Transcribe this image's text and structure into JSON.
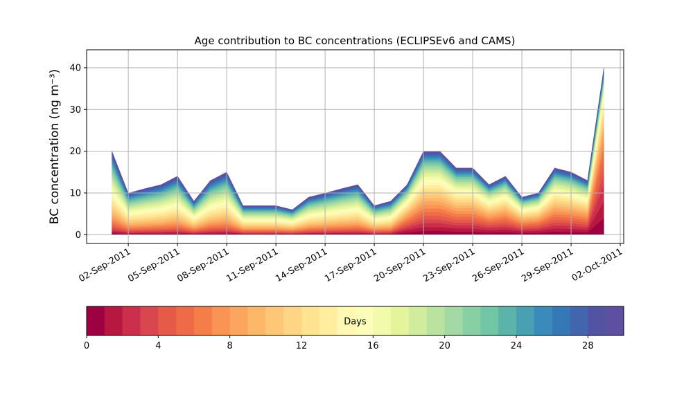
{
  "chart_data": {
    "type": "stacked_area",
    "title": "Age contribution to BC concentrations (ECLIPSEv6 and CAMS)",
    "ylabel": "BC concentration (ng m⁻³)",
    "x": [
      "2011-09-01",
      "2011-09-02",
      "2011-09-03",
      "2011-09-04",
      "2011-09-05",
      "2011-09-06",
      "2011-09-07",
      "2011-09-08",
      "2011-09-09",
      "2011-09-10",
      "2011-09-11",
      "2011-09-12",
      "2011-09-13",
      "2011-09-14",
      "2011-09-15",
      "2011-09-16",
      "2011-09-17",
      "2011-09-18",
      "2011-09-19",
      "2011-09-20",
      "2011-09-21",
      "2011-09-22",
      "2011-09-23",
      "2011-09-24",
      "2011-09-25",
      "2011-09-26",
      "2011-09-27",
      "2011-09-28",
      "2011-09-29",
      "2011-09-30",
      "2011-10-01"
    ],
    "xlim": [
      "2011-08-30T11:00",
      "2011-10-02T05:00"
    ],
    "xticks": [
      {
        "value": "2011-09-02",
        "label": "02-Sep-2011"
      },
      {
        "value": "2011-09-05",
        "label": "05-Sep-2011"
      },
      {
        "value": "2011-09-08",
        "label": "08-Sep-2011"
      },
      {
        "value": "2011-09-11",
        "label": "11-Sep-2011"
      },
      {
        "value": "2011-09-14",
        "label": "14-Sep-2011"
      },
      {
        "value": "2011-09-17",
        "label": "17-Sep-2011"
      },
      {
        "value": "2011-09-20",
        "label": "20-Sep-2011"
      },
      {
        "value": "2011-09-23",
        "label": "23-Sep-2011"
      },
      {
        "value": "2011-09-26",
        "label": "26-Sep-2011"
      },
      {
        "value": "2011-09-29",
        "label": "29-Sep-2011"
      },
      {
        "value": "2011-10-02",
        "label": "02-Oct-2011"
      }
    ],
    "ylim": [
      -2.1,
      44.3
    ],
    "yticks": [
      0,
      10,
      20,
      30,
      40
    ],
    "grid": true,
    "colorbar": {
      "label": "Days",
      "lim": [
        0,
        30
      ],
      "ticks": [
        0,
        4,
        8,
        12,
        16,
        20,
        24,
        28
      ]
    },
    "series": [
      {
        "color": "#9e0142",
        "values": [
          0.4,
          0.2,
          0.22,
          0.24,
          0.28,
          0.16,
          0.26,
          0.3,
          0.14,
          0.14,
          0.14,
          0.12,
          0.18,
          0.2,
          0.22,
          0.24,
          0.14,
          0.16,
          0.56,
          0.93,
          0.93,
          0.75,
          0.75,
          0.56,
          0.65,
          0.42,
          0.47,
          0.75,
          0.7,
          0.61,
          4
        ]
      },
      {
        "color": "#b8183f",
        "values": [
          0.4,
          0.2,
          0.22,
          0.24,
          0.28,
          0.16,
          0.26,
          0.3,
          0.14,
          0.14,
          0.14,
          0.12,
          0.18,
          0.2,
          0.22,
          0.24,
          0.14,
          0.16,
          0.56,
          0.93,
          0.93,
          0.75,
          0.75,
          0.56,
          0.65,
          0.42,
          0.47,
          0.75,
          0.7,
          0.61,
          4
        ]
      },
      {
        "color": "#cc2f4c",
        "values": [
          0.4,
          0.2,
          0.22,
          0.24,
          0.28,
          0.16,
          0.26,
          0.3,
          0.14,
          0.14,
          0.14,
          0.12,
          0.18,
          0.2,
          0.22,
          0.24,
          0.14,
          0.16,
          0.56,
          0.93,
          0.93,
          0.75,
          0.75,
          0.56,
          0.65,
          0.42,
          0.47,
          0.75,
          0.7,
          0.61,
          4
        ]
      },
      {
        "color": "#da464d",
        "values": [
          0.53,
          0.27,
          0.29,
          0.32,
          0.37,
          0.21,
          0.35,
          0.4,
          0.19,
          0.19,
          0.19,
          0.16,
          0.24,
          0.27,
          0.29,
          0.32,
          0.19,
          0.21,
          0.52,
          0.87,
          0.87,
          0.69,
          0.69,
          0.52,
          0.61,
          0.39,
          0.43,
          0.69,
          0.65,
          0.56,
          2.67
        ]
      },
      {
        "color": "#e55a48",
        "values": [
          0.53,
          0.27,
          0.29,
          0.32,
          0.37,
          0.21,
          0.35,
          0.4,
          0.19,
          0.19,
          0.19,
          0.16,
          0.24,
          0.27,
          0.29,
          0.32,
          0.19,
          0.21,
          0.52,
          0.87,
          0.87,
          0.69,
          0.69,
          0.52,
          0.61,
          0.39,
          0.43,
          0.69,
          0.65,
          0.56,
          2.67
        ]
      },
      {
        "color": "#ef6b47",
        "values": [
          0.53,
          0.27,
          0.29,
          0.32,
          0.37,
          0.21,
          0.35,
          0.4,
          0.19,
          0.19,
          0.19,
          0.16,
          0.24,
          0.27,
          0.29,
          0.32,
          0.19,
          0.21,
          0.52,
          0.87,
          0.87,
          0.69,
          0.69,
          0.52,
          0.61,
          0.39,
          0.43,
          0.69,
          0.65,
          0.56,
          2.67
        ]
      },
      {
        "color": "#f57d4a",
        "values": [
          0.67,
          0.33,
          0.37,
          0.4,
          0.47,
          0.27,
          0.43,
          0.5,
          0.23,
          0.23,
          0.23,
          0.2,
          0.3,
          0.33,
          0.37,
          0.4,
          0.23,
          0.27,
          0.52,
          0.87,
          0.87,
          0.69,
          0.69,
          0.52,
          0.61,
          0.39,
          0.43,
          0.69,
          0.65,
          0.56,
          1.87
        ]
      },
      {
        "color": "#f99455",
        "values": [
          0.67,
          0.33,
          0.37,
          0.4,
          0.47,
          0.27,
          0.43,
          0.5,
          0.23,
          0.23,
          0.23,
          0.2,
          0.3,
          0.33,
          0.37,
          0.4,
          0.23,
          0.27,
          0.52,
          0.87,
          0.87,
          0.69,
          0.69,
          0.52,
          0.61,
          0.39,
          0.43,
          0.69,
          0.65,
          0.56,
          1.87
        ]
      },
      {
        "color": "#fca55f",
        "values": [
          0.67,
          0.33,
          0.37,
          0.4,
          0.47,
          0.27,
          0.43,
          0.5,
          0.23,
          0.23,
          0.23,
          0.2,
          0.3,
          0.33,
          0.37,
          0.4,
          0.23,
          0.27,
          0.52,
          0.87,
          0.87,
          0.69,
          0.69,
          0.52,
          0.61,
          0.39,
          0.43,
          0.69,
          0.65,
          0.56,
          1.87
        ]
      },
      {
        "color": "#fdb769",
        "values": [
          0.8,
          0.4,
          0.44,
          0.48,
          0.56,
          0.32,
          0.52,
          0.6,
          0.28,
          0.28,
          0.28,
          0.24,
          0.36,
          0.4,
          0.44,
          0.48,
          0.28,
          0.32,
          0.48,
          0.8,
          0.8,
          0.64,
          0.64,
          0.48,
          0.56,
          0.36,
          0.4,
          0.64,
          0.6,
          0.52,
          1.33
        ]
      },
      {
        "color": "#fec778",
        "values": [
          0.8,
          0.4,
          0.44,
          0.48,
          0.56,
          0.32,
          0.52,
          0.6,
          0.28,
          0.28,
          0.28,
          0.24,
          0.36,
          0.4,
          0.44,
          0.48,
          0.28,
          0.32,
          0.48,
          0.8,
          0.8,
          0.64,
          0.64,
          0.48,
          0.56,
          0.36,
          0.4,
          0.64,
          0.6,
          0.52,
          1.33
        ]
      },
      {
        "color": "#fed585",
        "values": [
          0.8,
          0.4,
          0.44,
          0.48,
          0.56,
          0.32,
          0.52,
          0.6,
          0.28,
          0.28,
          0.28,
          0.24,
          0.36,
          0.4,
          0.44,
          0.48,
          0.28,
          0.32,
          0.48,
          0.8,
          0.8,
          0.64,
          0.64,
          0.48,
          0.56,
          0.36,
          0.4,
          0.64,
          0.6,
          0.52,
          1.33
        ]
      },
      {
        "color": "#fee391",
        "values": [
          0.87,
          0.43,
          0.48,
          0.52,
          0.61,
          0.35,
          0.56,
          0.65,
          0.3,
          0.3,
          0.3,
          0.26,
          0.39,
          0.43,
          0.48,
          0.52,
          0.3,
          0.35,
          0.44,
          0.73,
          0.73,
          0.59,
          0.59,
          0.44,
          0.51,
          0.33,
          0.37,
          0.59,
          0.55,
          0.48,
          1.07
        ]
      },
      {
        "color": "#feee9e",
        "values": [
          0.87,
          0.43,
          0.48,
          0.52,
          0.61,
          0.35,
          0.56,
          0.65,
          0.3,
          0.3,
          0.3,
          0.26,
          0.39,
          0.43,
          0.48,
          0.52,
          0.3,
          0.35,
          0.44,
          0.73,
          0.73,
          0.59,
          0.59,
          0.44,
          0.51,
          0.33,
          0.37,
          0.59,
          0.55,
          0.48,
          1.07
        ]
      },
      {
        "color": "#fff8b3",
        "values": [
          0.87,
          0.43,
          0.48,
          0.52,
          0.61,
          0.35,
          0.56,
          0.65,
          0.3,
          0.3,
          0.3,
          0.26,
          0.39,
          0.43,
          0.48,
          0.52,
          0.3,
          0.35,
          0.44,
          0.73,
          0.73,
          0.59,
          0.59,
          0.44,
          0.51,
          0.33,
          0.37,
          0.59,
          0.55,
          0.48,
          1.07
        ]
      },
      {
        "color": "#fbfdb9",
        "values": [
          0.87,
          0.43,
          0.48,
          0.52,
          0.61,
          0.35,
          0.56,
          0.65,
          0.3,
          0.3,
          0.3,
          0.26,
          0.39,
          0.43,
          0.48,
          0.52,
          0.3,
          0.35,
          0.4,
          0.67,
          0.67,
          0.53,
          0.53,
          0.4,
          0.47,
          0.3,
          0.33,
          0.53,
          0.5,
          0.43,
          0.8
        ]
      },
      {
        "color": "#f2faac",
        "values": [
          0.87,
          0.43,
          0.48,
          0.52,
          0.61,
          0.35,
          0.56,
          0.65,
          0.3,
          0.3,
          0.3,
          0.26,
          0.39,
          0.43,
          0.48,
          0.52,
          0.3,
          0.35,
          0.4,
          0.67,
          0.67,
          0.53,
          0.53,
          0.4,
          0.47,
          0.3,
          0.33,
          0.53,
          0.5,
          0.43,
          0.8
        ]
      },
      {
        "color": "#e4f49a",
        "values": [
          0.87,
          0.43,
          0.48,
          0.52,
          0.61,
          0.35,
          0.56,
          0.65,
          0.3,
          0.3,
          0.3,
          0.26,
          0.39,
          0.43,
          0.48,
          0.52,
          0.3,
          0.35,
          0.4,
          0.67,
          0.67,
          0.53,
          0.53,
          0.4,
          0.47,
          0.3,
          0.33,
          0.53,
          0.5,
          0.43,
          0.8
        ]
      },
      {
        "color": "#d1ec9c",
        "values": [
          0.8,
          0.4,
          0.44,
          0.48,
          0.56,
          0.32,
          0.52,
          0.6,
          0.28,
          0.28,
          0.28,
          0.24,
          0.36,
          0.4,
          0.44,
          0.48,
          0.28,
          0.32,
          0.36,
          0.6,
          0.6,
          0.48,
          0.48,
          0.36,
          0.42,
          0.27,
          0.3,
          0.48,
          0.45,
          0.39,
          0.53
        ]
      },
      {
        "color": "#bae3a0",
        "values": [
          0.8,
          0.4,
          0.44,
          0.48,
          0.56,
          0.32,
          0.52,
          0.6,
          0.28,
          0.28,
          0.28,
          0.24,
          0.36,
          0.4,
          0.44,
          0.48,
          0.28,
          0.32,
          0.36,
          0.6,
          0.6,
          0.48,
          0.48,
          0.36,
          0.42,
          0.27,
          0.3,
          0.48,
          0.45,
          0.39,
          0.53
        ]
      },
      {
        "color": "#a2d9a4",
        "values": [
          0.8,
          0.4,
          0.44,
          0.48,
          0.56,
          0.32,
          0.52,
          0.6,
          0.28,
          0.28,
          0.28,
          0.24,
          0.36,
          0.4,
          0.44,
          0.48,
          0.28,
          0.32,
          0.36,
          0.6,
          0.6,
          0.48,
          0.48,
          0.36,
          0.42,
          0.27,
          0.3,
          0.48,
          0.45,
          0.39,
          0.53
        ]
      },
      {
        "color": "#89cfa4",
        "values": [
          0.67,
          0.33,
          0.37,
          0.4,
          0.47,
          0.27,
          0.43,
          0.5,
          0.23,
          0.23,
          0.23,
          0.2,
          0.3,
          0.33,
          0.37,
          0.4,
          0.23,
          0.27,
          0.28,
          0.47,
          0.47,
          0.37,
          0.37,
          0.28,
          0.33,
          0.21,
          0.23,
          0.37,
          0.35,
          0.3,
          0.4
        ]
      },
      {
        "color": "#71c6a5",
        "values": [
          0.67,
          0.33,
          0.37,
          0.4,
          0.47,
          0.27,
          0.43,
          0.5,
          0.23,
          0.23,
          0.23,
          0.2,
          0.3,
          0.33,
          0.37,
          0.4,
          0.23,
          0.27,
          0.28,
          0.47,
          0.47,
          0.37,
          0.37,
          0.28,
          0.33,
          0.21,
          0.23,
          0.37,
          0.35,
          0.3,
          0.4
        ]
      },
      {
        "color": "#5cb3a9",
        "values": [
          0.67,
          0.33,
          0.37,
          0.4,
          0.47,
          0.27,
          0.43,
          0.5,
          0.23,
          0.23,
          0.23,
          0.2,
          0.3,
          0.33,
          0.37,
          0.4,
          0.23,
          0.27,
          0.28,
          0.47,
          0.47,
          0.37,
          0.37,
          0.28,
          0.33,
          0.21,
          0.23,
          0.37,
          0.35,
          0.3,
          0.4
        ]
      },
      {
        "color": "#4aa0b3",
        "values": [
          0.6,
          0.3,
          0.33,
          0.36,
          0.42,
          0.24,
          0.39,
          0.45,
          0.21,
          0.21,
          0.21,
          0.18,
          0.27,
          0.3,
          0.33,
          0.36,
          0.21,
          0.24,
          0.24,
          0.4,
          0.4,
          0.32,
          0.32,
          0.24,
          0.28,
          0.18,
          0.2,
          0.32,
          0.3,
          0.26,
          0.4
        ]
      },
      {
        "color": "#3a8bbb",
        "values": [
          0.6,
          0.3,
          0.33,
          0.36,
          0.42,
          0.24,
          0.39,
          0.45,
          0.21,
          0.21,
          0.21,
          0.18,
          0.27,
          0.3,
          0.33,
          0.36,
          0.21,
          0.24,
          0.24,
          0.4,
          0.4,
          0.32,
          0.32,
          0.24,
          0.28,
          0.18,
          0.2,
          0.32,
          0.3,
          0.26,
          0.4
        ]
      },
      {
        "color": "#3479b5",
        "values": [
          0.6,
          0.3,
          0.33,
          0.36,
          0.42,
          0.24,
          0.39,
          0.45,
          0.21,
          0.21,
          0.21,
          0.18,
          0.27,
          0.3,
          0.33,
          0.36,
          0.21,
          0.24,
          0.24,
          0.4,
          0.4,
          0.32,
          0.32,
          0.24,
          0.28,
          0.18,
          0.2,
          0.32,
          0.3,
          0.26,
          0.4
        ]
      },
      {
        "color": "#4266ae",
        "values": [
          0.47,
          0.23,
          0.26,
          0.28,
          0.33,
          0.19,
          0.3,
          0.35,
          0.16,
          0.16,
          0.16,
          0.14,
          0.21,
          0.23,
          0.26,
          0.28,
          0.16,
          0.19,
          0.2,
          0.33,
          0.33,
          0.27,
          0.27,
          0.2,
          0.23,
          0.15,
          0.17,
          0.27,
          0.25,
          0.22,
          0.27
        ]
      },
      {
        "color": "#5254a3",
        "values": [
          0.47,
          0.23,
          0.26,
          0.28,
          0.33,
          0.19,
          0.3,
          0.35,
          0.16,
          0.16,
          0.16,
          0.14,
          0.21,
          0.23,
          0.26,
          0.28,
          0.16,
          0.19,
          0.2,
          0.33,
          0.33,
          0.27,
          0.27,
          0.2,
          0.23,
          0.15,
          0.17,
          0.27,
          0.25,
          0.22,
          0.27
        ]
      },
      {
        "color": "#5e4fa2",
        "values": [
          0.47,
          0.23,
          0.26,
          0.28,
          0.33,
          0.19,
          0.3,
          0.35,
          0.16,
          0.16,
          0.16,
          0.14,
          0.21,
          0.23,
          0.26,
          0.28,
          0.16,
          0.19,
          0.2,
          0.33,
          0.33,
          0.27,
          0.27,
          0.2,
          0.23,
          0.15,
          0.17,
          0.27,
          0.25,
          0.22,
          0.27
        ]
      }
    ]
  }
}
